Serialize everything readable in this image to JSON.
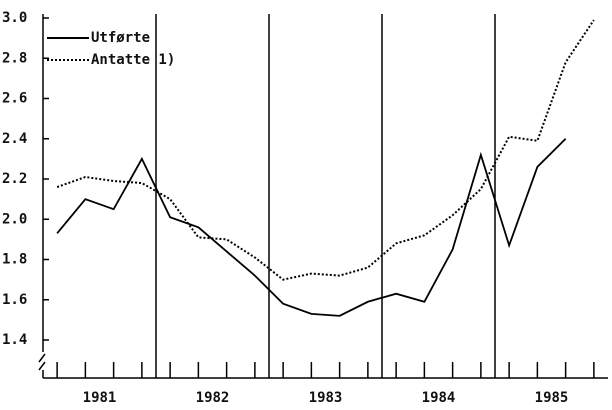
{
  "chart_data": {
    "type": "line",
    "x": [
      1981.125,
      1981.375,
      1981.625,
      1981.875,
      1982.125,
      1982.375,
      1982.625,
      1982.875,
      1983.125,
      1983.375,
      1983.625,
      1983.875,
      1984.125,
      1984.375,
      1984.625,
      1984.875,
      1985.125,
      1985.375,
      1985.625,
      1985.875
    ],
    "series": [
      {
        "name": "Utførte",
        "color": "#000000",
        "dash": "solid",
        "values": [
          1.93,
          2.1,
          2.05,
          2.3,
          2.01,
          1.96,
          1.84,
          1.72,
          1.58,
          1.53,
          1.52,
          1.59,
          1.63,
          1.59,
          1.85,
          2.32,
          1.87,
          2.26,
          2.4,
          null
        ]
      },
      {
        "name": "Antatte 1)",
        "color": "#000000",
        "dash": "dotted",
        "values": [
          2.16,
          2.21,
          2.19,
          2.18,
          2.1,
          1.91,
          1.9,
          1.81,
          1.7,
          1.73,
          1.72,
          1.76,
          1.88,
          1.92,
          2.02,
          2.15,
          2.41,
          2.39,
          2.78,
          2.99
        ]
      }
    ],
    "xlim": [
      1981,
      1986
    ],
    "xticks": [
      {
        "value": 1981.5,
        "label": "1981"
      },
      {
        "value": 1982.5,
        "label": "1982"
      },
      {
        "value": 1983.5,
        "label": "1983"
      },
      {
        "value": 1984.5,
        "label": "1984"
      },
      {
        "value": 1985.5,
        "label": "1985"
      }
    ],
    "vlines": [
      1982,
      1983,
      1984,
      1985
    ],
    "ylim": [
      1.4,
      3.0
    ],
    "yticks": [
      1.4,
      1.6,
      1.8,
      {
        "value": 2.0,
        "label": "2.0"
      },
      2.2,
      2.4,
      2.6,
      2.8,
      {
        "value": 3.0,
        "label": "3.0"
      }
    ],
    "legend": "top-left"
  }
}
